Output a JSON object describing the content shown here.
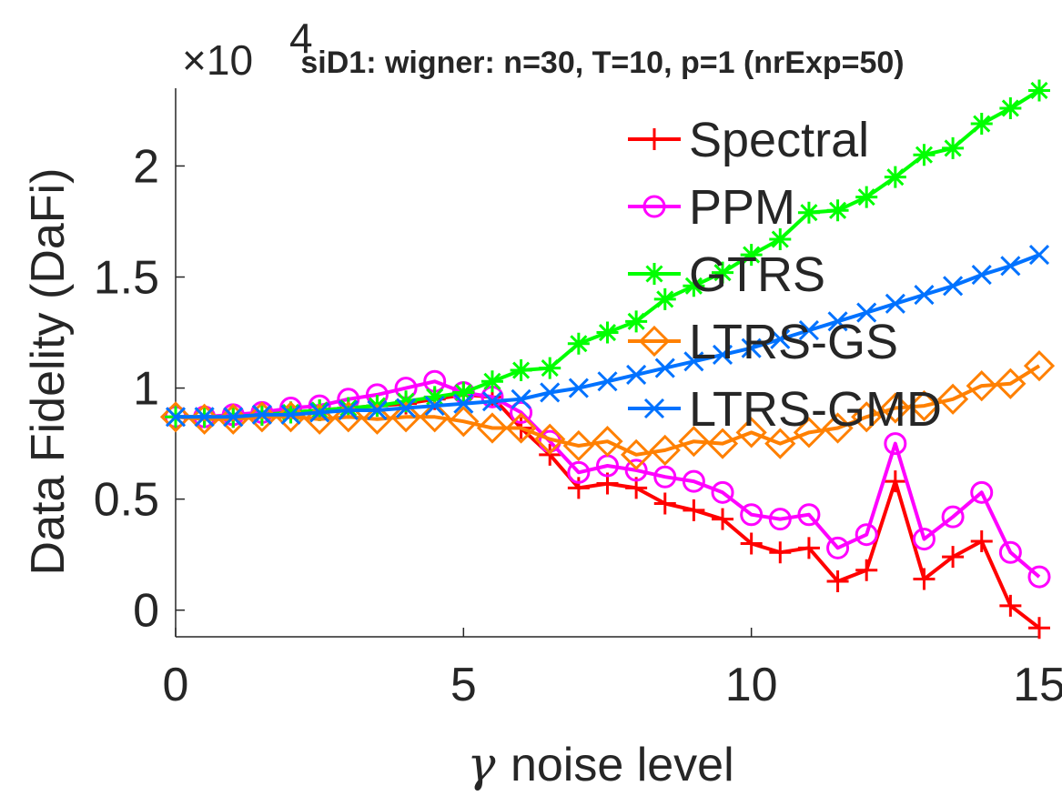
{
  "chart_data": {
    "type": "line",
    "title": "siD1: wigner: n=30, T=10, p=1 (nrExp=50)",
    "xlabel": "noise level",
    "xlabel_symbol": "γ",
    "ylabel": "Data Fidelity (DaFi)",
    "exponent_label": {
      "base": "×10",
      "power": "4"
    },
    "xlim": [
      0,
      15
    ],
    "ylim": [
      -0.12,
      2.35
    ],
    "xticks": [
      0,
      5,
      10,
      15
    ],
    "yticks": [
      0,
      0.5,
      1,
      1.5,
      2
    ],
    "ytick_labels": [
      "0",
      "0.5",
      "1",
      "1.5",
      "2"
    ],
    "legend_position": "top-right",
    "grid": false,
    "x": [
      0,
      0.5,
      1,
      1.5,
      2,
      2.5,
      3,
      3.5,
      4,
      4.5,
      5,
      5.5,
      6,
      6.5,
      7,
      7.5,
      8,
      8.5,
      9,
      9.5,
      10,
      10.5,
      11,
      11.5,
      12,
      12.5,
      13,
      13.5,
      14,
      14.5,
      15
    ],
    "series": [
      {
        "name": "Spectral",
        "color": "#ff0000",
        "marker": "plus",
        "values": [
          0.87,
          0.87,
          0.87,
          0.88,
          0.89,
          0.9,
          0.91,
          0.92,
          0.93,
          0.95,
          0.97,
          0.96,
          0.82,
          0.7,
          0.55,
          0.57,
          0.55,
          0.48,
          0.45,
          0.41,
          0.3,
          0.26,
          0.28,
          0.13,
          0.18,
          0.58,
          0.14,
          0.24,
          0.31,
          0.02,
          -0.08
        ]
      },
      {
        "name": "PPM",
        "color": "#ff00ff",
        "marker": "circle",
        "values": [
          0.87,
          0.87,
          0.88,
          0.89,
          0.91,
          0.92,
          0.95,
          0.97,
          1.0,
          1.03,
          0.98,
          0.96,
          0.89,
          0.76,
          0.62,
          0.65,
          0.63,
          0.6,
          0.58,
          0.53,
          0.43,
          0.41,
          0.43,
          0.28,
          0.34,
          0.75,
          0.32,
          0.42,
          0.53,
          0.26,
          0.15
        ]
      },
      {
        "name": "GTRS",
        "color": "#00ff00",
        "marker": "asterisk",
        "values": [
          0.87,
          0.87,
          0.87,
          0.88,
          0.89,
          0.9,
          0.91,
          0.92,
          0.94,
          0.96,
          0.98,
          1.03,
          1.08,
          1.09,
          1.2,
          1.25,
          1.3,
          1.4,
          1.46,
          1.52,
          1.6,
          1.67,
          1.79,
          1.8,
          1.86,
          1.95,
          2.05,
          2.08,
          2.19,
          2.26,
          2.34
        ]
      },
      {
        "name": "LTRS-GS",
        "color": "#ff8000",
        "marker": "diamond",
        "values": [
          0.87,
          0.86,
          0.86,
          0.87,
          0.87,
          0.86,
          0.87,
          0.86,
          0.87,
          0.87,
          0.85,
          0.82,
          0.82,
          0.77,
          0.74,
          0.76,
          0.7,
          0.72,
          0.76,
          0.75,
          0.8,
          0.75,
          0.8,
          0.82,
          0.87,
          0.91,
          0.92,
          0.95,
          1.01,
          1.02,
          1.1
        ]
      },
      {
        "name": "LTRS-GMD",
        "color": "#0072ff",
        "marker": "cross",
        "values": [
          0.87,
          0.87,
          0.87,
          0.88,
          0.88,
          0.89,
          0.9,
          0.9,
          0.91,
          0.92,
          0.93,
          0.94,
          0.95,
          0.98,
          1.0,
          1.03,
          1.06,
          1.09,
          1.12,
          1.15,
          1.18,
          1.22,
          1.26,
          1.3,
          1.34,
          1.38,
          1.42,
          1.46,
          1.51,
          1.55,
          1.6
        ]
      }
    ]
  }
}
